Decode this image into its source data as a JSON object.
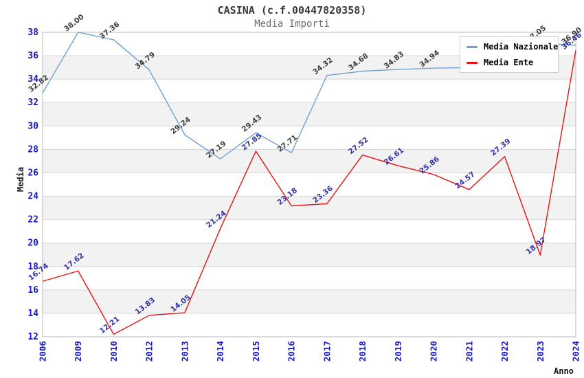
{
  "header": {
    "title": "CASINA (c.f.00447820358)",
    "subtitle": "Media Importi"
  },
  "legend": {
    "items": [
      {
        "label": "Media Nazionale",
        "color": "#6ea0d7"
      },
      {
        "label": "Media Ente",
        "color": "#ee1111"
      }
    ]
  },
  "axes": {
    "ylabel": "Media",
    "xlabel": "Anno"
  },
  "colors": {
    "tick_label": "#1515cb",
    "grid_line": "#d6d6d6",
    "plot_border": "#b8b8b8",
    "band_gray": "#f2f2f2",
    "title_text": "#3a3a3a",
    "subtitle_text": "#6e6e6e"
  },
  "chart_data": {
    "type": "line",
    "title": "CASINA (c.f.00447820358)",
    "subtitle": "Media Importi",
    "xlabel": "Anno",
    "ylabel": "Media",
    "x": [
      2006,
      2009,
      2010,
      2012,
      2013,
      2014,
      2015,
      2016,
      2017,
      2018,
      2019,
      2020,
      2021,
      2022,
      2023,
      2024
    ],
    "ylim": [
      12,
      38
    ],
    "ytick_step": 2,
    "grid": true,
    "banded_background": true,
    "legend_position": "top-right",
    "series": [
      {
        "name": "Media Nazionale",
        "color": "#6ea0d7",
        "label_color": "#3f3f3f",
        "values": [
          32.82,
          38.0,
          37.36,
          34.79,
          29.24,
          27.19,
          29.43,
          27.71,
          34.32,
          34.68,
          34.83,
          34.94,
          34.98,
          34.75,
          37.05,
          36.9
        ],
        "labels": [
          "32.82",
          "38.00",
          "37.36",
          "34.79",
          "29.24",
          "27.19",
          "29.43",
          "27.71",
          "34.32",
          "34.68",
          "34.83",
          "34.94",
          null,
          null,
          "37.05",
          "36.90"
        ]
      },
      {
        "name": "Media Ente",
        "color": "#ee1111",
        "label_color": "#3434ac",
        "values": [
          16.74,
          17.62,
          12.21,
          13.83,
          14.05,
          21.24,
          27.85,
          23.18,
          23.36,
          27.52,
          26.61,
          25.86,
          24.57,
          27.39,
          18.97,
          36.46
        ],
        "labels": [
          "16.74",
          "17.62",
          "12.21",
          "13.83",
          "14.05",
          "21.24",
          "27.85",
          "23.18",
          "23.36",
          "27.52",
          "26.61",
          "25.86",
          "24.57",
          "27.39",
          "18.97",
          "36.46"
        ]
      }
    ]
  }
}
